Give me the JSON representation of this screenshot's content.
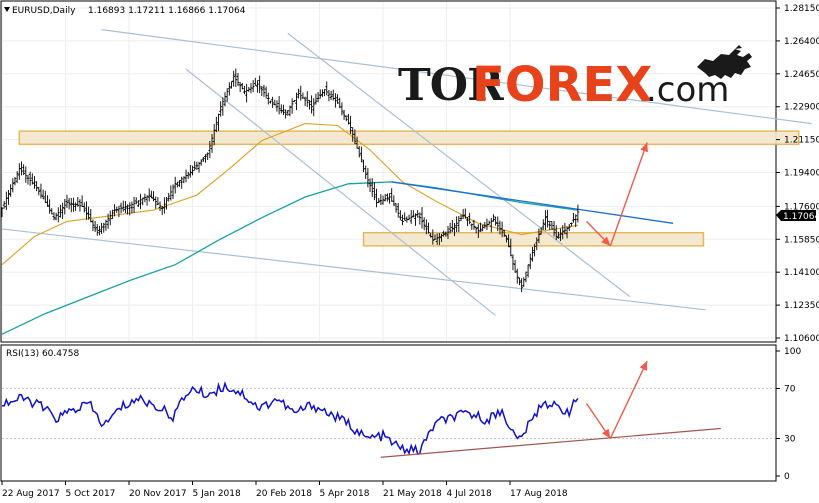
{
  "chart_header": {
    "symbol": "EURUSD,Daily",
    "ohlc": "1.16893 1.17211 1.16866 1.17064"
  },
  "rsi_header": {
    "label": "RSI(13) 60.4758"
  },
  "logo": {
    "part1": "TOR",
    "part2": "FOREX",
    "part3": ".com"
  },
  "current_price": "1.17064",
  "colors": {
    "candles": "#000000",
    "ma_slow": "#17a2a2",
    "ma_fast": "#e0a020",
    "channel": "#a9bfd4",
    "trendline_blue": "#1f6fd0",
    "zone_fill": "#f3e7cc",
    "zone_border": "#e3b14c",
    "arrow": "#f05a4a",
    "rsi": "#1010d0",
    "rsi_trend": "#a0574f",
    "logo_orange": "#e8421b"
  },
  "chart_data": [
    {
      "type": "candlestick",
      "title": "EURUSD,Daily",
      "y_ticks": [
        "1.28150",
        "1.26400",
        "1.24650",
        "1.22900",
        "1.21150",
        "1.19400",
        "1.17600",
        "1.15850",
        "1.14100",
        "1.12350",
        "1.10600"
      ],
      "ylim": [
        1.106,
        1.2815
      ],
      "x_ticks": [
        "22 Aug 2017",
        "5 Oct 2017",
        "20 Nov 2017",
        "5 Jan 2018",
        "20 Feb 2018",
        "5 Apr 2018",
        "21 May 2018",
        "4 Jul 2018",
        "17 Aug 2018"
      ],
      "close_path": [
        [
          0,
          1.175
        ],
        [
          8,
          1.196
        ],
        [
          16,
          1.186
        ],
        [
          24,
          1.17
        ],
        [
          30,
          1.178
        ],
        [
          37,
          1.176
        ],
        [
          44,
          1.162
        ],
        [
          52,
          1.174
        ],
        [
          60,
          1.177
        ],
        [
          68,
          1.182
        ],
        [
          74,
          1.175
        ],
        [
          80,
          1.188
        ],
        [
          88,
          1.195
        ],
        [
          95,
          1.204
        ],
        [
          101,
          1.229
        ],
        [
          107,
          1.245
        ],
        [
          112,
          1.237
        ],
        [
          118,
          1.241
        ],
        [
          124,
          1.232
        ],
        [
          131,
          1.225
        ],
        [
          137,
          1.236
        ],
        [
          143,
          1.229
        ],
        [
          149,
          1.238
        ],
        [
          155,
          1.231
        ],
        [
          161,
          1.218
        ],
        [
          167,
          1.196
        ],
        [
          173,
          1.178
        ],
        [
          179,
          1.181
        ],
        [
          185,
          1.168
        ],
        [
          192,
          1.172
        ],
        [
          199,
          1.158
        ],
        [
          207,
          1.163
        ],
        [
          213,
          1.171
        ],
        [
          220,
          1.163
        ],
        [
          227,
          1.169
        ],
        [
          233,
          1.159
        ],
        [
          237,
          1.141
        ],
        [
          240,
          1.133
        ],
        [
          243,
          1.145
        ],
        [
          247,
          1.158
        ],
        [
          251,
          1.17
        ],
        [
          256,
          1.16
        ],
        [
          262,
          1.165
        ],
        [
          266,
          1.173
        ]
      ],
      "ma_slow_path": [
        [
          0,
          1.108
        ],
        [
          20,
          1.119
        ],
        [
          40,
          1.128
        ],
        [
          60,
          1.137
        ],
        [
          80,
          1.145
        ],
        [
          100,
          1.158
        ],
        [
          120,
          1.17
        ],
        [
          140,
          1.181
        ],
        [
          160,
          1.188
        ],
        [
          180,
          1.189
        ],
        [
          200,
          1.186
        ],
        [
          220,
          1.182
        ],
        [
          240,
          1.178
        ],
        [
          266,
          1.174
        ]
      ],
      "ma_fast_path": [
        [
          0,
          1.145
        ],
        [
          15,
          1.16
        ],
        [
          30,
          1.168
        ],
        [
          50,
          1.171
        ],
        [
          70,
          1.174
        ],
        [
          90,
          1.182
        ],
        [
          105,
          1.196
        ],
        [
          120,
          1.211
        ],
        [
          140,
          1.22
        ],
        [
          155,
          1.219
        ],
        [
          170,
          1.206
        ],
        [
          185,
          1.189
        ],
        [
          200,
          1.179
        ],
        [
          220,
          1.167
        ],
        [
          240,
          1.161
        ],
        [
          266,
          1.166
        ]
      ],
      "channel_lines": [
        [
          [
            46,
            1.27
          ],
          [
            374,
            1.22
          ]
        ],
        [
          [
            0,
            1.164
          ],
          [
            325,
            1.121
          ]
        ],
        [
          [
            132,
            1.268
          ],
          [
            290,
            1.128
          ]
        ],
        [
          [
            85,
            1.249
          ],
          [
            228,
            1.118
          ]
        ]
      ],
      "blue_trendline": [
        [
          180,
          1.189
        ],
        [
          310,
          1.167
        ]
      ],
      "resistance_zone": {
        "x": [
          8,
          368
        ],
        "y": [
          1.216,
          1.209
        ]
      },
      "support_zone": {
        "x": [
          167,
          324
        ],
        "y": [
          1.162,
          1.155
        ]
      },
      "projection_arrows": [
        [
          [
            270,
            1.168
          ],
          [
            281,
            1.155
          ]
        ],
        [
          [
            281,
            1.155
          ],
          [
            298,
            1.21
          ]
        ]
      ]
    },
    {
      "type": "line",
      "title": "RSI(13) 60.4758",
      "y_ticks": [
        "100",
        "70",
        "30",
        "0"
      ],
      "ylim": [
        0,
        100
      ],
      "rsi_path": [
        [
          0,
          58
        ],
        [
          10,
          62
        ],
        [
          18,
          56
        ],
        [
          25,
          46
        ],
        [
          32,
          52
        ],
        [
          40,
          58
        ],
        [
          47,
          40
        ],
        [
          55,
          55
        ],
        [
          63,
          62
        ],
        [
          71,
          56
        ],
        [
          79,
          48
        ],
        [
          87,
          70
        ],
        [
          95,
          65
        ],
        [
          103,
          72
        ],
        [
          111,
          66
        ],
        [
          119,
          54
        ],
        [
          127,
          62
        ],
        [
          135,
          50
        ],
        [
          143,
          57
        ],
        [
          151,
          50
        ],
        [
          160,
          42
        ],
        [
          168,
          30
        ],
        [
          176,
          32
        ],
        [
          184,
          22
        ],
        [
          193,
          20
        ],
        [
          200,
          42
        ],
        [
          208,
          47
        ],
        [
          216,
          50
        ],
        [
          224,
          45
        ],
        [
          231,
          52
        ],
        [
          238,
          28
        ],
        [
          244,
          42
        ],
        [
          250,
          60
        ],
        [
          256,
          55
        ],
        [
          262,
          52
        ],
        [
          266,
          62
        ]
      ],
      "rsi_trendline": [
        [
          175,
          15
        ],
        [
          332,
          38
        ]
      ],
      "projection_arrows": [
        [
          [
            270,
            58
          ],
          [
            281,
            30
          ]
        ],
        [
          [
            281,
            30
          ],
          [
            298,
            92
          ]
        ]
      ]
    }
  ]
}
